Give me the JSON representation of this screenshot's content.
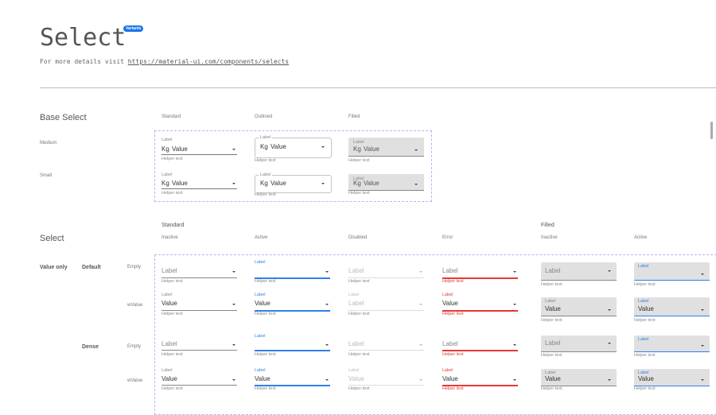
{
  "header": {
    "title": "Select",
    "badge": "Variants",
    "subtitle_prefix": "For more details visit",
    "link": "https://material-ui.com/components/selects"
  },
  "colors": {
    "active": "#2f80ed",
    "error": "#e53935",
    "filled_bg": "#e0e0e0",
    "dashed_border": "#b9b4f0",
    "badge": "#1a73e8"
  },
  "base_select": {
    "title": "Base Select",
    "columns": [
      "Standard",
      "Outlined",
      "Filled"
    ],
    "rows": [
      {
        "name": "Medium",
        "cells": [
          {
            "label": "Label",
            "prefix": "Kg",
            "value": "Value",
            "helper": "Helper text"
          },
          {
            "label": "Label",
            "prefix": "Kg",
            "value": "Value",
            "helper": "Helper text"
          },
          {
            "label": "Label",
            "prefix": "Kg",
            "value": "Value",
            "helper": "Helper text"
          }
        ]
      },
      {
        "name": "Small",
        "cells": [
          {
            "label": "Label",
            "prefix": "Kg",
            "value": "Value",
            "helper": "Helper text"
          },
          {
            "label": "Label",
            "prefix": "Kg",
            "value": "Value",
            "helper": "Helper text"
          },
          {
            "label": "Label",
            "prefix": "Kg",
            "value": "Value",
            "helper": "Helper text"
          }
        ]
      }
    ]
  },
  "select": {
    "title": "Select",
    "groups": [
      "Standard",
      "Filled"
    ],
    "columns": [
      {
        "label": "Inactive",
        "variant": "standard",
        "state": "inactive"
      },
      {
        "label": "Active",
        "variant": "standard",
        "state": "active"
      },
      {
        "label": "Disabled",
        "variant": "standard",
        "state": "disabled"
      },
      {
        "label": "Error",
        "variant": "standard",
        "state": "error"
      },
      {
        "label": "Inactive",
        "variant": "filled",
        "state": "inactive"
      },
      {
        "label": "Active",
        "variant": "filled",
        "state": "active"
      }
    ],
    "content_type": "Value only",
    "rows": [
      {
        "density": "Default",
        "content": "Empty",
        "label": "Label",
        "value": "",
        "helper": "Helper text"
      },
      {
        "density": "",
        "content": "wValue",
        "label": "Label",
        "value": "Value",
        "disabled_value": "Label",
        "helper": "Helper text"
      },
      {
        "density": "Dense",
        "content": "Empty",
        "label": "Label",
        "value": "",
        "helper": "Helper text"
      },
      {
        "density": "",
        "content": "wValue",
        "label": "Label",
        "value": "Value",
        "disabled_value": "Value",
        "helper": "Helper text"
      }
    ]
  }
}
